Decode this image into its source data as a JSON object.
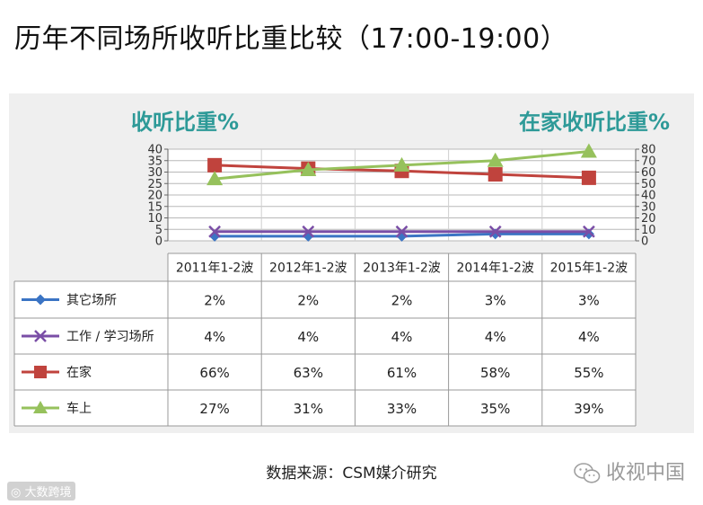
{
  "title": "历年不同场所收听比重比较（17:00-19:00）",
  "left_axis_title": "收听比重%",
  "right_axis_title": "在家收听比重%",
  "source": "数据来源：CSM媒介研究",
  "watermark_right": "收视中国",
  "watermark_left": "大数跨境",
  "colors": {
    "background_panel": "#efefef",
    "axis_title": "#2e9a98",
    "其它场所": "#3b74c4",
    "工作 / 学习场所": "#7a4ea6",
    "在家": "#c0433d",
    "车上": "#96c15c"
  },
  "chart_data": {
    "type": "line",
    "categories": [
      "2011年1-2波",
      "2012年1-2波",
      "2013年1-2波",
      "2014年1-2波",
      "2015年1-2波"
    ],
    "left_axis": {
      "ylim": [
        0,
        40
      ],
      "ticks": [
        0,
        5,
        10,
        15,
        20,
        25,
        30,
        35,
        40
      ]
    },
    "right_axis": {
      "ylim": [
        0,
        80
      ],
      "ticks": [
        0,
        10,
        20,
        30,
        40,
        50,
        60,
        70,
        80
      ]
    },
    "series": [
      {
        "name": "其它场所",
        "axis": "left",
        "marker": "diamond",
        "values": [
          2,
          2,
          2,
          3,
          3
        ],
        "labels": [
          "2%",
          "2%",
          "2%",
          "3%",
          "3%"
        ]
      },
      {
        "name": "工作 / 学习场所",
        "axis": "left",
        "marker": "x",
        "values": [
          4,
          4,
          4,
          4,
          4
        ],
        "labels": [
          "4%",
          "4%",
          "4%",
          "4%",
          "4%"
        ]
      },
      {
        "name": "在家",
        "axis": "right",
        "marker": "square",
        "values": [
          66,
          63,
          61,
          58,
          55
        ],
        "labels": [
          "66%",
          "63%",
          "61%",
          "58%",
          "55%"
        ]
      },
      {
        "name": "车上",
        "axis": "left",
        "marker": "triangle",
        "values": [
          27,
          31,
          33,
          35,
          39
        ],
        "labels": [
          "27%",
          "31%",
          "33%",
          "35%",
          "39%"
        ]
      }
    ],
    "grid": true,
    "legend": "data-table"
  }
}
